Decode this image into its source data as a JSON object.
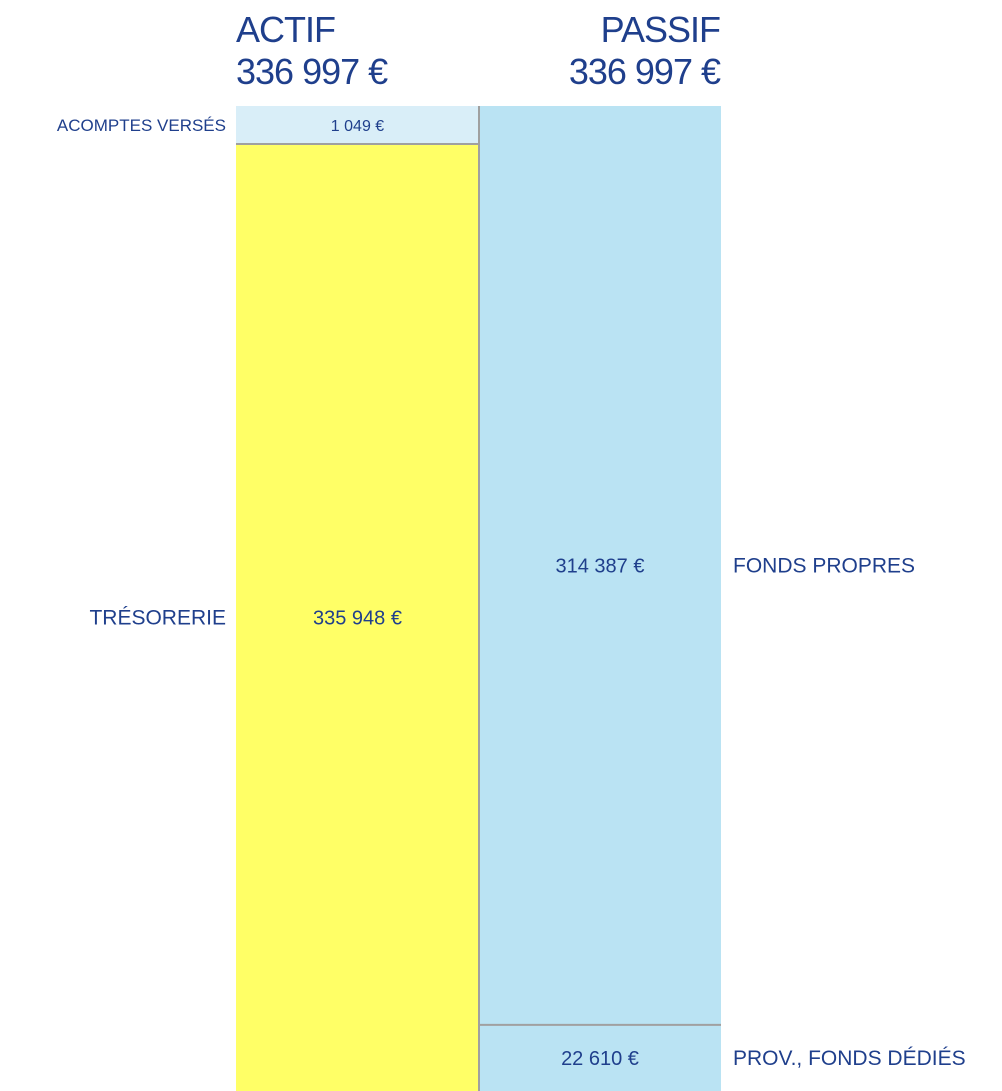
{
  "chart_data": {
    "type": "bar",
    "colors": {
      "actif_acomptes": "#d9eef8",
      "actif_tresorerie": "#ffff66",
      "passif": "#bae3f3",
      "text": "#1f3f8c",
      "divider": "#a0a0a0"
    },
    "actif": {
      "title": "ACTIF",
      "total": 336997,
      "total_label": "336 997 €",
      "segments": [
        {
          "name": "ACOMPTES VERSÉS",
          "value": 1049,
          "value_label": "1 049 €"
        },
        {
          "name": "TRÉSORERIE",
          "value": 335948,
          "value_label": "335 948 €"
        }
      ]
    },
    "passif": {
      "title": "PASSIF",
      "total": 336997,
      "total_label": "336 997 €",
      "segments": [
        {
          "name": "FONDS PROPRES",
          "value": 314387,
          "value_label": "314 387 €"
        },
        {
          "name": "PROV., FONDS DÉDIÉS",
          "value": 22610,
          "value_label": "22 610 €"
        }
      ]
    }
  }
}
